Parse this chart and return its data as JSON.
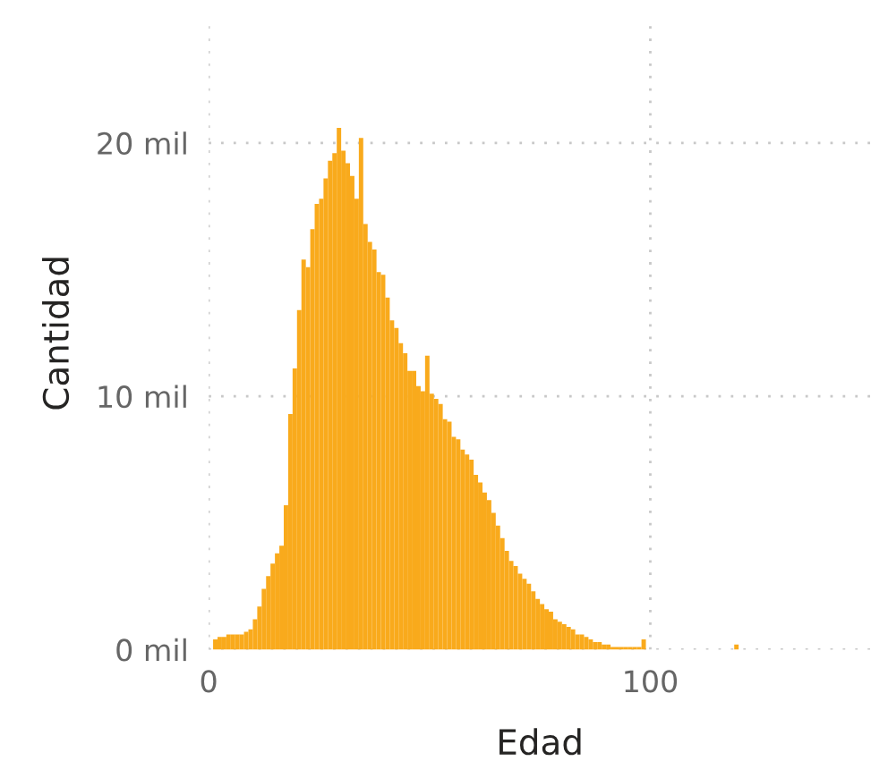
{
  "chart_data": {
    "type": "histogram",
    "xlabel": "Edad",
    "ylabel": "Cantidad",
    "color": "#f9aa1c",
    "bins": [
      1,
      2,
      3,
      4,
      5,
      6,
      7,
      8,
      9,
      10,
      11,
      12,
      13,
      14,
      15,
      16,
      17,
      18,
      19,
      20,
      21,
      22,
      23,
      24,
      25,
      26,
      27,
      28,
      29,
      30,
      31,
      32,
      33,
      34,
      35,
      36,
      37,
      38,
      39,
      40,
      41,
      42,
      43,
      44,
      45,
      46,
      47,
      48,
      49,
      50,
      51,
      52,
      53,
      54,
      55,
      56,
      57,
      58,
      59,
      60,
      61,
      62,
      63,
      64,
      65,
      66,
      67,
      68,
      69,
      70,
      71,
      72,
      73,
      74,
      75,
      76,
      77,
      78,
      79,
      80,
      81,
      82,
      83,
      84,
      85,
      86,
      87,
      88,
      89,
      90,
      91,
      92,
      93,
      94,
      95,
      96,
      97,
      98,
      99,
      119,
      120
    ],
    "values": [
      0.4,
      0.5,
      0.5,
      0.6,
      0.6,
      0.6,
      0.6,
      0.7,
      0.8,
      1.2,
      1.7,
      2.4,
      2.9,
      3.4,
      3.8,
      4.1,
      5.7,
      9.3,
      11.1,
      13.4,
      15.4,
      15.1,
      16.6,
      17.6,
      17.8,
      18.6,
      19.3,
      19.6,
      20.6,
      19.7,
      19.2,
      18.7,
      17.8,
      20.2,
      16.8,
      16.1,
      15.8,
      14.9,
      14.8,
      13.9,
      13.0,
      12.7,
      12.1,
      11.7,
      11.0,
      11.0,
      10.4,
      10.2,
      11.6,
      10.1,
      9.9,
      9.7,
      9.1,
      9.0,
      8.4,
      8.3,
      7.9,
      7.7,
      7.5,
      6.9,
      6.6,
      6.2,
      5.9,
      5.4,
      4.9,
      4.4,
      3.9,
      3.5,
      3.3,
      3.0,
      2.8,
      2.6,
      2.3,
      2.0,
      1.8,
      1.6,
      1.5,
      1.2,
      1.1,
      1.0,
      0.9,
      0.8,
      0.6,
      0.6,
      0.5,
      0.4,
      0.3,
      0.3,
      0.2,
      0.2,
      0.1,
      0.1,
      0.1,
      0.1,
      0.1,
      0.1,
      0.1,
      0.4,
      0,
      0.2
    ],
    "xlim": [
      0,
      150
    ],
    "xticks": [
      0,
      100
    ],
    "ylim": [
      0,
      25
    ],
    "yticks": [
      {
        "value": 0,
        "label": "0 mil"
      },
      {
        "value": 10,
        "label": "10 mil"
      },
      {
        "value": 20,
        "label": "20 mil"
      }
    ],
    "grid": true
  }
}
